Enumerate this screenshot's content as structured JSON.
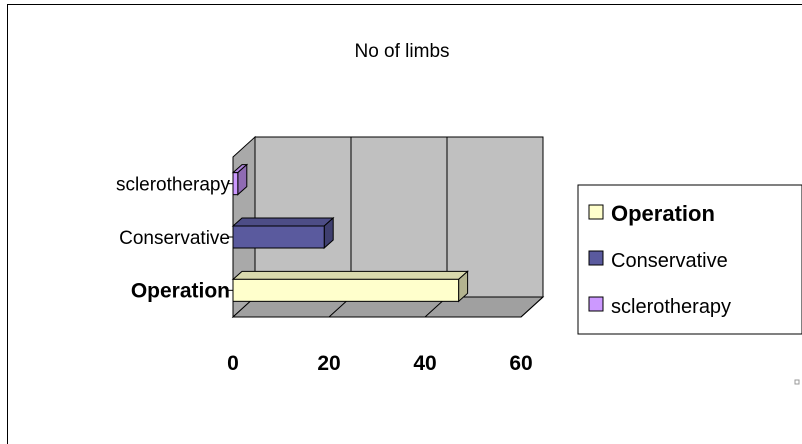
{
  "chart_data": {
    "type": "bar",
    "orientation": "horizontal",
    "style": "3d",
    "title": "No of limbs",
    "categories": [
      "Operation",
      "Conservative",
      "sclerotherapy"
    ],
    "values": [
      47,
      19,
      1
    ],
    "colors": [
      "#FFFFCC",
      "#5A5A9E",
      "#CC99FF"
    ],
    "xlim": [
      0,
      60
    ],
    "xticks": [
      0,
      20,
      40,
      60
    ],
    "xtick_labels": [
      "0",
      "20",
      "40",
      "60"
    ],
    "grid": true,
    "legend_position": "right",
    "legend": [
      "Operation",
      "Conservative",
      "sclerotherapy"
    ]
  }
}
